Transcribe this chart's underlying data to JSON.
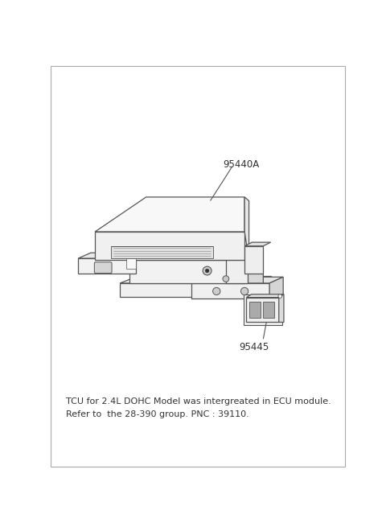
{
  "background_color": "#ffffff",
  "line_color": "#555555",
  "line_width": 0.9,
  "label_95440A": "95440A",
  "label_95445": "95445",
  "note_line1": "TCU for 2.4L DOHC Model was intergreated in ECU module.",
  "note_line2": "Refer to  the 28-390 group. PNC : 39110.",
  "note_fontsize": 8.0,
  "label_fontsize": 8.5,
  "face_top": "#f8f8f8",
  "face_front": "#f0f0f0",
  "face_right": "#e8e8e8",
  "face_bracket": "#eeeeee",
  "face_dark": "#d8d8d8"
}
